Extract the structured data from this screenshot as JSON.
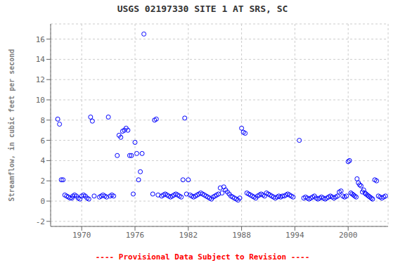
{
  "chart_data": {
    "type": "scatter",
    "title": "USGS 02197330  SITE 1 AT SRS, SC",
    "ylabel": "Streamflow, in cubic feet per second",
    "annotations": [
      {
        "text": "---- Provisional Data Subject to Revision ----",
        "color": "red"
      }
    ],
    "xlim": [
      1966.5,
      2004.5
    ],
    "ylim": [
      -2.5,
      17.5
    ],
    "yticks": [
      -2,
      0,
      2,
      4,
      6,
      8,
      10,
      12,
      14,
      16
    ],
    "xticks": [
      1970,
      1976,
      1982,
      1988,
      1994,
      2000
    ],
    "color": "blue",
    "marker": "circle",
    "grid": true,
    "x": [
      1967.3,
      1967.5,
      1967.7,
      1967.9,
      1968.1,
      1968.3,
      1968.5,
      1968.7,
      1968.9,
      1969.0,
      1969.2,
      1969.4,
      1969.6,
      1969.8,
      1970.0,
      1970.2,
      1970.4,
      1970.6,
      1970.8,
      1971.0,
      1971.2,
      1971.4,
      1972.0,
      1972.2,
      1972.4,
      1972.6,
      1972.8,
      1973.0,
      1973.2,
      1973.4,
      1973.6,
      1974.0,
      1974.2,
      1974.4,
      1974.6,
      1974.8,
      1975.0,
      1975.2,
      1975.4,
      1975.6,
      1975.8,
      1976.0,
      1976.2,
      1976.4,
      1976.6,
      1976.8,
      1977.0,
      1978.0,
      1978.2,
      1978.4,
      1978.6,
      1979.0,
      1979.2,
      1979.4,
      1979.6,
      1979.8,
      1980.0,
      1980.2,
      1980.4,
      1980.6,
      1980.8,
      1981.0,
      1981.2,
      1981.4,
      1981.6,
      1981.8,
      1982.0,
      1982.2,
      1982.4,
      1982.6,
      1982.8,
      1983.0,
      1983.2,
      1983.4,
      1983.6,
      1983.8,
      1984.0,
      1984.2,
      1984.4,
      1984.6,
      1984.8,
      1985.0,
      1985.2,
      1985.4,
      1985.6,
      1985.8,
      1986.0,
      1986.2,
      1986.4,
      1986.6,
      1986.8,
      1987.0,
      1987.2,
      1987.4,
      1987.6,
      1987.8,
      1988.0,
      1988.2,
      1988.4,
      1988.6,
      1988.8,
      1989.0,
      1989.2,
      1989.4,
      1989.6,
      1989.8,
      1990.0,
      1990.2,
      1990.4,
      1990.6,
      1990.8,
      1991.0,
      1991.2,
      1991.4,
      1991.6,
      1991.8,
      1992.0,
      1992.2,
      1992.4,
      1992.6,
      1992.8,
      1993.0,
      1993.2,
      1993.4,
      1993.6,
      1993.8,
      1994.5,
      1995.0,
      1995.2,
      1995.4,
      1995.6,
      1995.8,
      1996.0,
      1996.2,
      1996.4,
      1996.6,
      1996.8,
      1997.0,
      1997.2,
      1997.4,
      1997.6,
      1997.8,
      1998.0,
      1998.2,
      1998.4,
      1998.6,
      1998.8,
      1999.0,
      1999.2,
      1999.4,
      1999.6,
      1999.8,
      2000.0,
      2000.15,
      2000.3,
      2000.45,
      2000.6,
      2000.75,
      2000.9,
      2001.0,
      2001.15,
      2001.3,
      2001.45,
      2001.6,
      2001.75,
      2001.9,
      2002.0,
      2002.15,
      2002.3,
      2002.45,
      2002.6,
      2002.75,
      2003.0,
      2003.2,
      2003.4,
      2003.6,
      2003.8,
      2004.0,
      2004.2
    ],
    "y": [
      8.1,
      7.6,
      2.1,
      2.1,
      0.6,
      0.5,
      0.4,
      0.3,
      0.3,
      0.5,
      0.6,
      0.5,
      0.3,
      0.2,
      0.5,
      0.6,
      0.5,
      0.3,
      0.2,
      8.3,
      7.9,
      0.5,
      0.4,
      0.5,
      0.6,
      0.5,
      0.4,
      8.3,
      0.5,
      0.6,
      0.5,
      4.5,
      6.5,
      6.3,
      6.9,
      7.0,
      7.2,
      7.0,
      4.5,
      4.5,
      0.7,
      5.8,
      4.7,
      2.1,
      2.9,
      4.7,
      16.5,
      0.7,
      8.0,
      8.1,
      0.6,
      0.5,
      0.6,
      0.7,
      0.6,
      0.5,
      0.4,
      0.5,
      0.6,
      0.7,
      0.6,
      0.5,
      0.4,
      2.1,
      8.2,
      0.7,
      2.1,
      0.6,
      0.5,
      0.4,
      0.5,
      0.6,
      0.7,
      0.8,
      0.7,
      0.6,
      0.5,
      0.4,
      0.3,
      0.2,
      0.4,
      0.5,
      0.6,
      0.7,
      1.3,
      0.8,
      1.4,
      1.1,
      0.9,
      0.7,
      0.5,
      0.4,
      0.3,
      0.2,
      0.1,
      0.3,
      7.2,
      6.8,
      6.7,
      0.8,
      0.7,
      0.6,
      0.5,
      0.4,
      0.3,
      0.5,
      0.6,
      0.7,
      0.6,
      0.5,
      0.8,
      0.7,
      0.6,
      0.5,
      0.4,
      0.3,
      0.4,
      0.5,
      0.4,
      0.5,
      0.5,
      0.6,
      0.7,
      0.6,
      0.5,
      0.4,
      6.0,
      0.3,
      0.4,
      0.3,
      0.2,
      0.3,
      0.4,
      0.5,
      0.3,
      0.2,
      0.3,
      0.4,
      0.3,
      0.2,
      0.3,
      0.4,
      0.5,
      0.4,
      0.3,
      0.4,
      0.5,
      0.9,
      1.0,
      0.5,
      0.4,
      0.5,
      3.9,
      4.0,
      0.8,
      0.7,
      0.6,
      0.5,
      0.4,
      2.2,
      1.8,
      1.6,
      1.5,
      0.9,
      1.1,
      0.8,
      0.7,
      0.6,
      0.5,
      0.4,
      0.3,
      0.2,
      2.1,
      2.0,
      0.5,
      0.4,
      0.3,
      0.4,
      0.5
    ]
  }
}
